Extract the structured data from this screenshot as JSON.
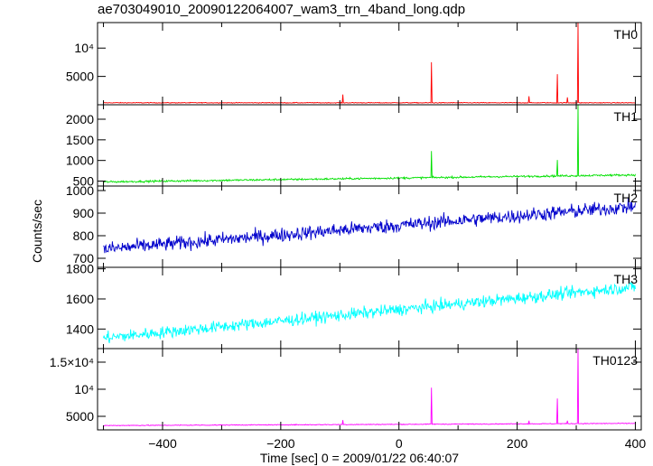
{
  "chart_data": {
    "type": "line",
    "title": "ae703049010_20090122064007_wam3_trn_4band_long.qdp",
    "xlabel": "Time [sec] 0 = 2009/01/22 06:40:07",
    "ylabel": "Counts/sec",
    "xlim": [
      -510,
      410
    ],
    "x_ticks": [
      {
        "value": -400,
        "label": "−400"
      },
      {
        "value": -200,
        "label": "−200"
      },
      {
        "value": 0,
        "label": "0"
      },
      {
        "value": 200,
        "label": "200"
      },
      {
        "value": 400,
        "label": "400"
      }
    ],
    "panels": [
      {
        "name": "TH0",
        "color": "#ff0000",
        "ylim": [
          0,
          14500
        ],
        "y_ticks": [
          {
            "value": 5000,
            "label": "5000"
          },
          {
            "value": 10000,
            "label": "10⁴"
          }
        ],
        "trend": [
          [
            -500,
            350
          ],
          [
            400,
            350
          ]
        ],
        "noise": 60,
        "spikes": [
          [
            -95,
            1800
          ],
          [
            55,
            7500
          ],
          [
            220,
            1500
          ],
          [
            268,
            5400
          ],
          [
            285,
            1300
          ],
          [
            303,
            14500
          ]
        ]
      },
      {
        "name": "TH1",
        "color": "#00e000",
        "ylim": [
          380,
          2350
        ],
        "y_ticks": [
          {
            "value": 500,
            "label": "500"
          },
          {
            "value": 1000,
            "label": "1000"
          },
          {
            "value": 1500,
            "label": "1500"
          },
          {
            "value": 2000,
            "label": "2000"
          }
        ],
        "trend": [
          [
            -500,
            480
          ],
          [
            400,
            650
          ]
        ],
        "noise": 22,
        "spikes": [
          [
            55,
            1230
          ],
          [
            268,
            1010
          ],
          [
            303,
            2350
          ]
        ]
      },
      {
        "name": "TH2",
        "color": "#0000cc",
        "ylim": [
          660,
          1020
        ],
        "y_ticks": [
          {
            "value": 700,
            "label": "700"
          },
          {
            "value": 800,
            "label": "800"
          },
          {
            "value": 900,
            "label": "900"
          },
          {
            "value": 1000,
            "label": "1000"
          }
        ],
        "trend": [
          [
            -500,
            740
          ],
          [
            400,
            930
          ]
        ],
        "noise": 30,
        "spikes": []
      },
      {
        "name": "TH3",
        "color": "#00ffff",
        "ylim": [
          1270,
          1810
        ],
        "y_ticks": [
          {
            "value": 1400,
            "label": "1400"
          },
          {
            "value": 1600,
            "label": "1600"
          },
          {
            "value": 1800,
            "label": "1800"
          }
        ],
        "trend": [
          [
            -500,
            1340
          ],
          [
            400,
            1680
          ]
        ],
        "noise": 38,
        "spikes": []
      },
      {
        "name": "TH0123",
        "color": "#ff00ff",
        "ylim": [
          2500,
          17500
        ],
        "y_ticks": [
          {
            "value": 5000,
            "label": "5000"
          },
          {
            "value": 10000,
            "label": "10⁴"
          },
          {
            "value": 15000,
            "label": "1.5×10⁴"
          }
        ],
        "trend": [
          [
            -500,
            3300
          ],
          [
            400,
            3700
          ]
        ],
        "noise": 70,
        "spikes": [
          [
            -95,
            4300
          ],
          [
            55,
            10300
          ],
          [
            220,
            4200
          ],
          [
            268,
            8300
          ],
          [
            285,
            4200
          ],
          [
            303,
            17500
          ]
        ]
      }
    ]
  }
}
